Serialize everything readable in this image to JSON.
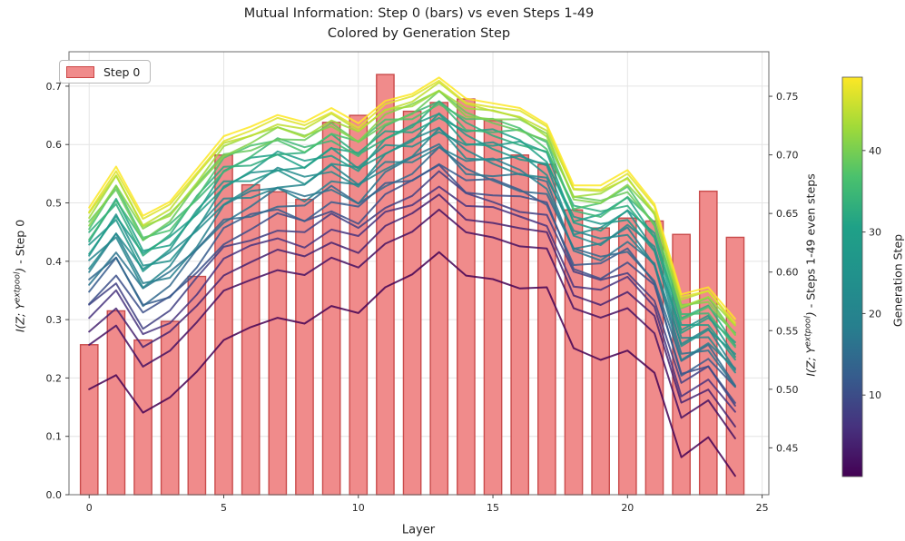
{
  "figure": {
    "title_line1": "Mutual Information: Step 0 (bars) vs even Steps 1-49",
    "title_line2": "Colored by Generation Step",
    "background": "#ffffff"
  },
  "axes": {
    "x": {
      "label": "Layer",
      "tick_values": [
        0,
        5,
        10,
        15,
        20,
        25
      ],
      "tick_labels": [
        "0",
        "5",
        "10",
        "15",
        "20",
        "25"
      ],
      "lim": [
        -0.75,
        25.25
      ]
    },
    "y_left": {
      "label_math": "I(Z; Y",
      "label_sup": "extpool",
      "label_close": ")",
      "label_text": " - Step 0",
      "tick_values": [
        0.0,
        0.1,
        0.2,
        0.3,
        0.4,
        0.5,
        0.6,
        0.7
      ],
      "tick_labels": [
        "0.0",
        "0.1",
        "0.2",
        "0.3",
        "0.4",
        "0.5",
        "0.6",
        "0.7"
      ],
      "lim": [
        0,
        0.759
      ]
    },
    "y_right": {
      "label_math": "I(Z; Y",
      "label_sup": "extpool",
      "label_close": ")",
      "label_text": " - Steps 1-49 even steps",
      "tick_values": [
        0.45,
        0.5,
        0.55,
        0.6,
        0.65,
        0.7,
        0.75
      ],
      "tick_labels": [
        "0.45",
        "0.50",
        "0.55",
        "0.60",
        "0.65",
        "0.70",
        "0.75"
      ],
      "lim": [
        0.41,
        0.788
      ]
    }
  },
  "legend": {
    "label": "Step 0"
  },
  "colorbar": {
    "label": "Generation Step",
    "tick_values": [
      10,
      20,
      30,
      40
    ],
    "tick_labels": [
      "10",
      "20",
      "30",
      "40"
    ],
    "vmin": 0,
    "vmax": 49
  },
  "chart_data": {
    "type": [
      "bar",
      "line"
    ],
    "title": "Mutual Information: Step 0 (bars) vs even Steps 1-49 — Colored by Generation Step",
    "xlabel": "Layer",
    "ylabel_left": "I(Z; Y^extpool) - Step 0",
    "ylabel_right": "I(Z; Y^extpool) - Steps 1-49 even steps",
    "grid": true,
    "x_layers": [
      0,
      1,
      2,
      3,
      4,
      5,
      6,
      7,
      8,
      9,
      10,
      11,
      12,
      13,
      14,
      15,
      16,
      17,
      18,
      19,
      20,
      21,
      22,
      23,
      24
    ],
    "bar_series": {
      "name": "Step 0",
      "axis": "left",
      "values": [
        0.257,
        0.315,
        0.265,
        0.297,
        0.374,
        0.582,
        0.531,
        0.519,
        0.506,
        0.638,
        0.65,
        0.72,
        0.657,
        0.672,
        0.678,
        0.641,
        0.582,
        0.566,
        0.488,
        0.457,
        0.474,
        0.469,
        0.446,
        0.52,
        0.441
      ]
    },
    "line_bundle": {
      "axis": "right",
      "colored_by": "Generation Step",
      "steps": [
        1,
        3,
        5,
        7,
        9,
        11,
        13,
        15,
        17,
        19,
        21,
        23,
        25,
        27,
        29,
        31,
        33,
        35,
        37,
        39,
        41,
        43,
        45,
        47,
        49
      ],
      "bottom_envelope_step1": [
        0.5,
        0.512,
        0.48,
        0.493,
        0.515,
        0.542,
        0.553,
        0.561,
        0.556,
        0.571,
        0.565,
        0.587,
        0.598,
        0.617,
        0.597,
        0.594,
        0.586,
        0.587,
        0.535,
        0.525,
        0.533,
        0.514,
        0.442,
        0.459,
        0.426
      ],
      "top_envelope_step49": [
        0.655,
        0.69,
        0.648,
        0.66,
        0.688,
        0.716,
        0.724,
        0.734,
        0.728,
        0.74,
        0.727,
        0.746,
        0.752,
        0.766,
        0.748,
        0.744,
        0.74,
        0.726,
        0.674,
        0.674,
        0.687,
        0.658,
        0.581,
        0.587,
        0.56
      ],
      "spread_exponent": 0.45,
      "jitter_amplitude": 0.007
    },
    "style": {
      "bar_fill": "#f08b8b",
      "bar_edge": "#c94b4b",
      "line_width": 2,
      "line_opacity": 0.85,
      "grid_color": "#e4e4e4",
      "spine_color": "#6b6b6b",
      "text_color": "#262626",
      "viridis_stops": [
        [
          0.0,
          "#440154"
        ],
        [
          0.125,
          "#46327e"
        ],
        [
          0.25,
          "#365c8d"
        ],
        [
          0.375,
          "#277f8e"
        ],
        [
          0.5,
          "#21918c"
        ],
        [
          0.625,
          "#1fa187"
        ],
        [
          0.75,
          "#4ac16d"
        ],
        [
          0.875,
          "#a0da39"
        ],
        [
          1.0,
          "#fde725"
        ]
      ]
    }
  }
}
